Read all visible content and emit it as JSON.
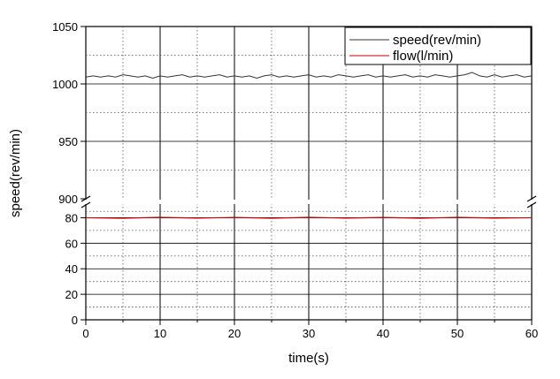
{
  "chart_data": {
    "type": "line",
    "title": "",
    "xlabel": "time(s)",
    "ylabel": "speed(rev/min)",
    "xlim": [
      0,
      60
    ],
    "x_ticks": [
      "0",
      "10",
      "20",
      "30",
      "40",
      "50",
      "60"
    ],
    "y_ticks_upper": [
      "900",
      "950",
      "1000",
      "1050"
    ],
    "y_ticks_lower": [
      "0",
      "20",
      "40",
      "60",
      "80"
    ],
    "ylim_upper": [
      900,
      1050
    ],
    "ylim_lower": [
      0,
      90
    ],
    "axis_break": true,
    "grid": true,
    "legend_position": "top-right",
    "series": [
      {
        "name": "speed(rev/min)",
        "color": "#333333",
        "x": [
          0,
          1,
          2,
          3,
          4,
          5,
          6,
          7,
          8,
          9,
          10,
          11,
          12,
          13,
          14,
          15,
          16,
          17,
          18,
          19,
          20,
          21,
          22,
          23,
          24,
          25,
          26,
          27,
          28,
          29,
          30,
          31,
          32,
          33,
          34,
          35,
          36,
          37,
          38,
          39,
          40,
          41,
          42,
          43,
          44,
          45,
          46,
          47,
          48,
          49,
          50,
          51,
          52,
          53,
          54,
          55,
          56,
          57,
          58,
          59,
          60
        ],
        "y": [
          1006,
          1007,
          1006,
          1007,
          1006,
          1008,
          1007,
          1006,
          1007,
          1005,
          1007,
          1006,
          1007,
          1008,
          1006,
          1007,
          1006,
          1007,
          1008,
          1006,
          1007,
          1006,
          1007,
          1005,
          1007,
          1008,
          1006,
          1007,
          1006,
          1007,
          1008,
          1006,
          1007,
          1006,
          1008,
          1007,
          1006,
          1007,
          1008,
          1006,
          1007,
          1006,
          1007,
          1008,
          1006,
          1007,
          1006,
          1008,
          1007,
          1006,
          1007,
          1008,
          1010,
          1007,
          1006,
          1008,
          1006,
          1007,
          1008,
          1006,
          1007
        ]
      },
      {
        "name": "flow(l/min)",
        "color": "#cc0000",
        "x": [
          0,
          5,
          10,
          15,
          20,
          25,
          30,
          35,
          40,
          45,
          50,
          55,
          60
        ],
        "y": [
          80,
          79.6,
          80.3,
          79.7,
          80.2,
          79.6,
          80.3,
          79.7,
          80.2,
          79.6,
          80.3,
          79.7,
          80
        ]
      }
    ]
  }
}
